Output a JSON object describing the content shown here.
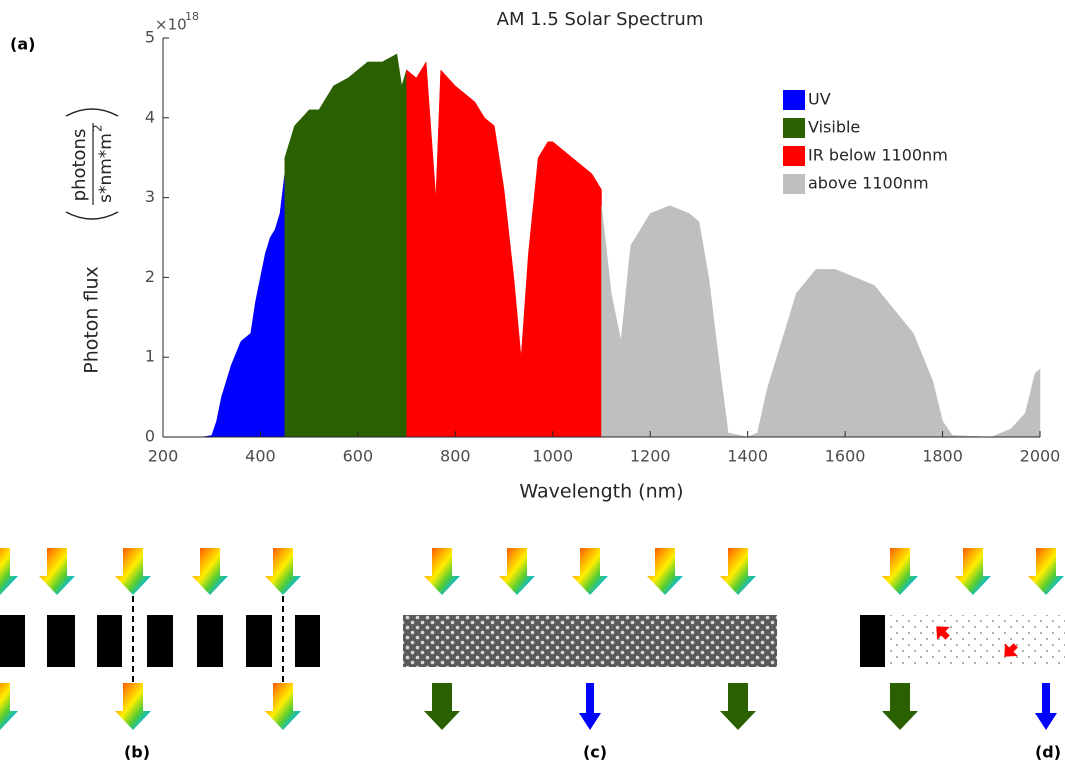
{
  "chart_data": {
    "type": "area",
    "title": "AM 1.5 Solar Spectrum",
    "x_label": "Wavelength (nm)",
    "y_label": {
      "text": "Photon flux",
      "numerator": "photons",
      "denominator": "s*nm*m",
      "denominator_exponent": "2"
    },
    "y_multiplier": {
      "base": "×10",
      "exponent": "18"
    },
    "xlim": [
      200,
      2000
    ],
    "xticks": [
      200,
      400,
      600,
      800,
      1000,
      1200,
      1400,
      1600,
      1800,
      2000
    ],
    "ylim": [
      0,
      5
    ],
    "yticks": [
      0,
      1,
      2,
      3,
      4,
      5
    ],
    "legend": "top-right",
    "series": [
      {
        "name": "UV",
        "color": "#0000ff",
        "x": [
          280,
          300,
          310,
          320,
          340,
          360,
          380,
          390,
          400,
          410,
          420,
          430,
          440,
          450
        ],
        "values": [
          0,
          0.02,
          0.2,
          0.5,
          0.9,
          1.2,
          1.3,
          1.7,
          2.0,
          2.3,
          2.5,
          2.6,
          2.8,
          3.3
        ]
      },
      {
        "name": "Visible",
        "color": "#2a6000",
        "x": [
          450,
          470,
          500,
          520,
          550,
          580,
          600,
          620,
          650,
          680,
          690,
          700
        ],
        "values": [
          3.5,
          3.9,
          4.1,
          4.1,
          4.4,
          4.5,
          4.6,
          4.7,
          4.7,
          4.8,
          4.4,
          4.6
        ]
      },
      {
        "name": "IR below 1100nm",
        "color": "#ff0000",
        "x": [
          700,
          720,
          740,
          760,
          770,
          800,
          820,
          840,
          860,
          880,
          900,
          920,
          935,
          950,
          970,
          990,
          1000,
          1040,
          1080,
          1100
        ],
        "values": [
          4.6,
          4.5,
          4.7,
          3.0,
          4.6,
          4.4,
          4.3,
          4.2,
          4.0,
          3.9,
          3.1,
          2.0,
          1.0,
          2.3,
          3.5,
          3.7,
          3.7,
          3.5,
          3.3,
          3.1
        ]
      },
      {
        "name": "above 1100nm",
        "color": "#bfbfbf",
        "x": [
          1100,
          1120,
          1140,
          1160,
          1200,
          1240,
          1280,
          1300,
          1320,
          1340,
          1360,
          1400,
          1420,
          1440,
          1460,
          1500,
          1540,
          1580,
          1620,
          1660,
          1700,
          1740,
          1780,
          1800,
          1820,
          1900,
          1940,
          1970,
          1990,
          2000
        ],
        "values": [
          2.9,
          1.8,
          1.2,
          2.4,
          2.8,
          2.9,
          2.8,
          2.7,
          2.0,
          1.0,
          0.05,
          0,
          0.05,
          0.6,
          1.0,
          1.8,
          2.1,
          2.1,
          2.0,
          1.9,
          1.6,
          1.3,
          0.7,
          0.2,
          0.02,
          0,
          0.1,
          0.3,
          0.8,
          0.85
        ]
      }
    ]
  },
  "panel_labels": [
    "(a)",
    "(b)",
    "(c)",
    "(d)"
  ]
}
